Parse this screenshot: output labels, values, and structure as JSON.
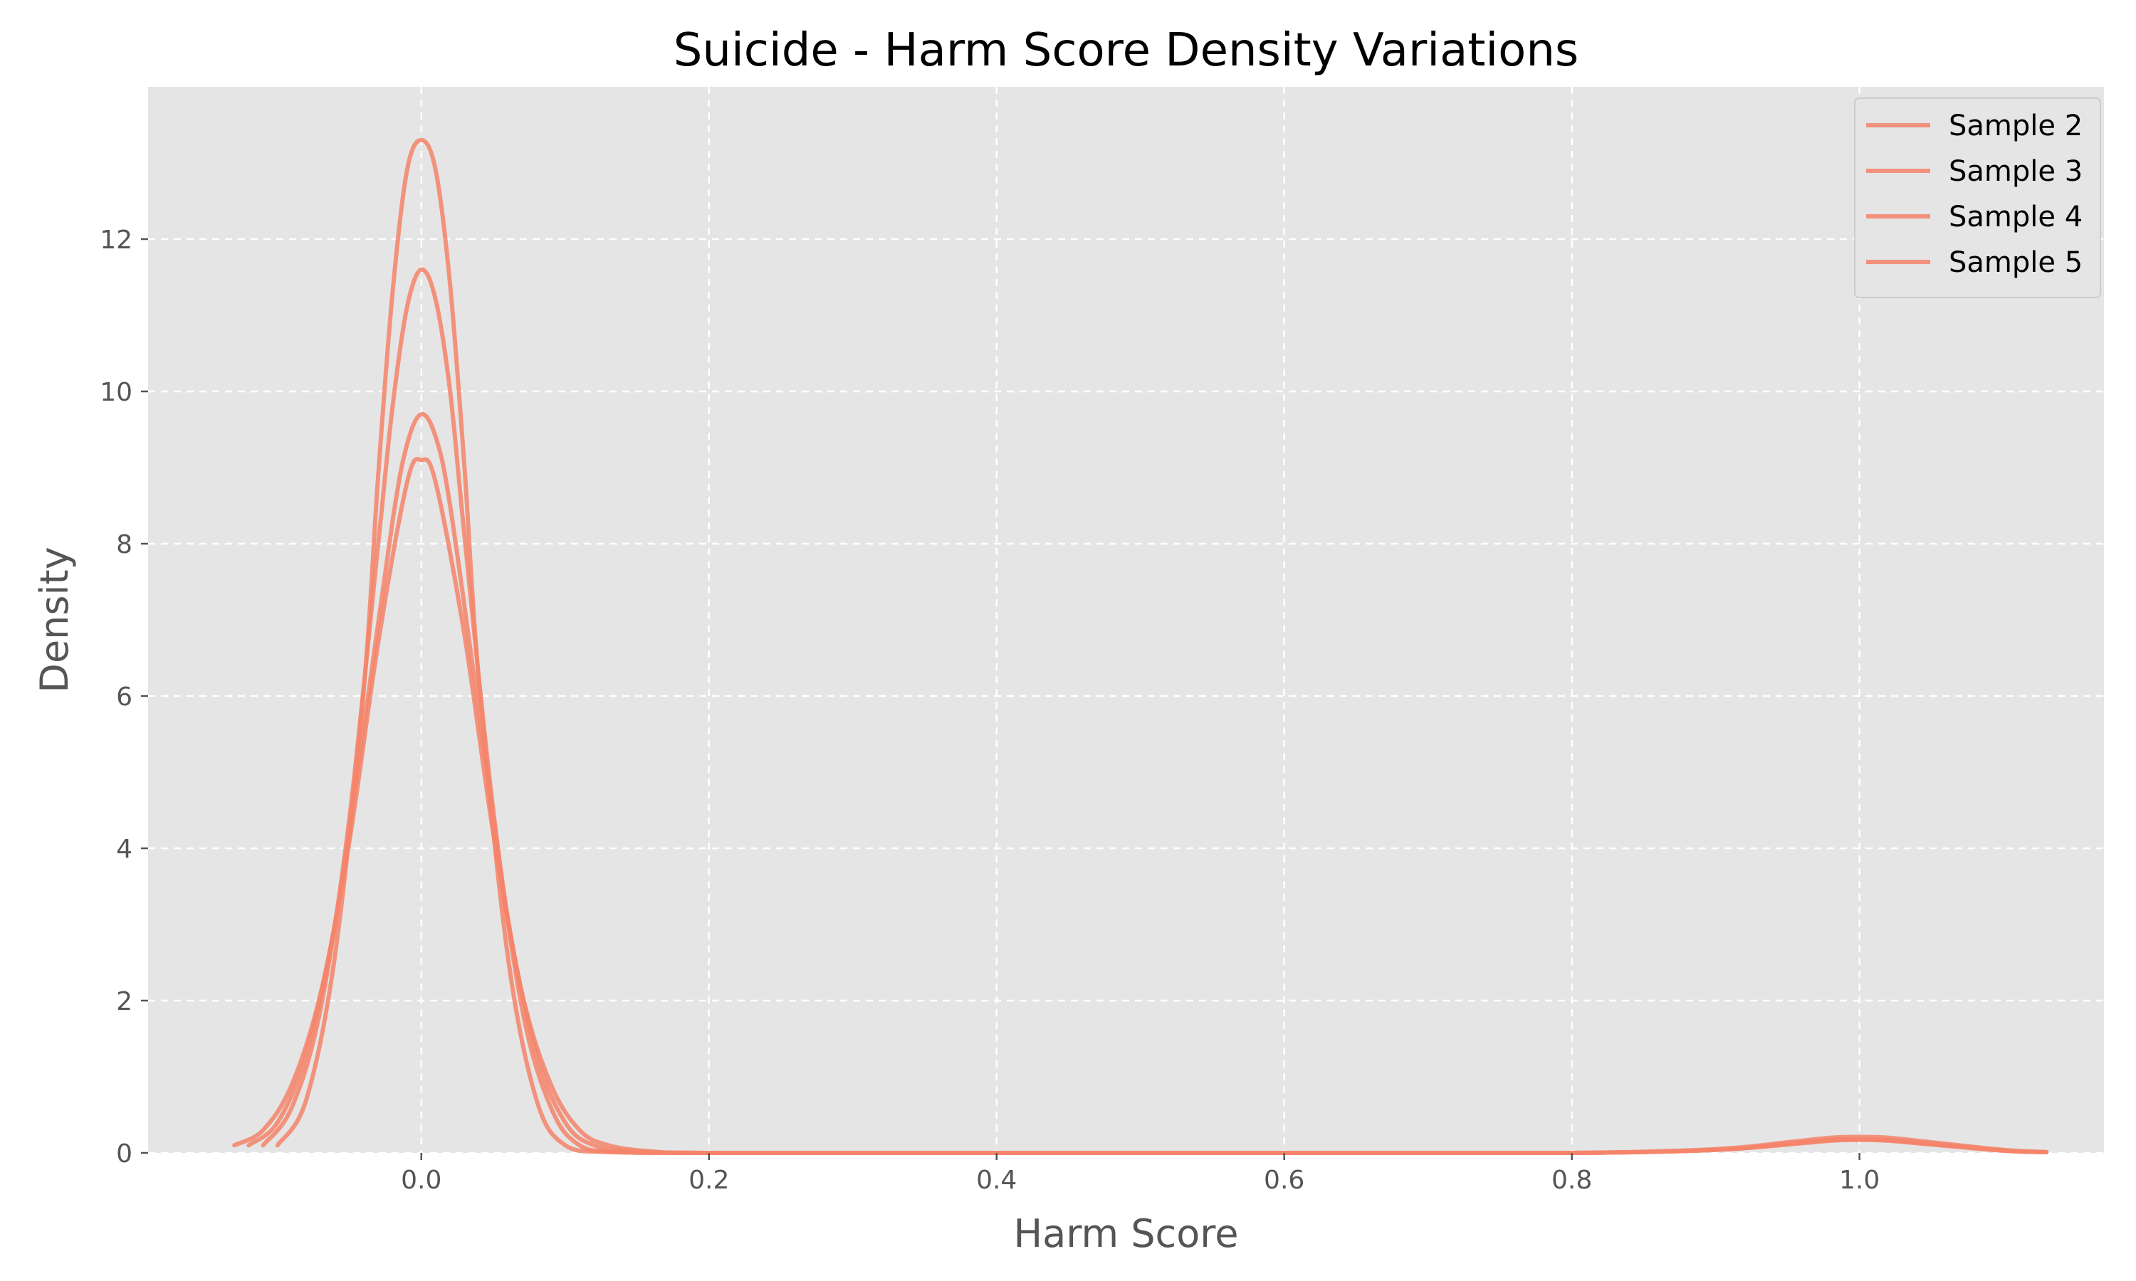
{
  "chart_data": {
    "type": "line",
    "title": "Suicide - Harm Score Density Variations",
    "xlabel": "Harm Score",
    "ylabel": "Density",
    "xlim": [
      -0.19,
      1.17
    ],
    "ylim": [
      0,
      14
    ],
    "xticks": [
      0.0,
      0.2,
      0.4,
      0.6,
      0.8,
      1.0
    ],
    "xtick_labels": [
      "0.0",
      "0.2",
      "0.4",
      "0.6",
      "0.8",
      "1.0"
    ],
    "yticks": [
      0,
      2,
      4,
      6,
      8,
      10,
      12
    ],
    "ytick_labels": [
      "0",
      "2",
      "4",
      "6",
      "8",
      "10",
      "12"
    ],
    "grid": true,
    "legend_position": "top-right",
    "background_color": "#e5e5e5",
    "line_color": "#f5846a",
    "series": [
      {
        "name": "Sample 2",
        "x": [
          -0.13,
          -0.11,
          -0.09,
          -0.07,
          -0.05,
          -0.03,
          -0.01,
          0.0,
          0.01,
          0.03,
          0.05,
          0.07,
          0.09,
          0.11,
          0.13,
          0.16,
          0.2,
          0.4,
          0.6,
          0.8,
          0.9,
          0.95,
          0.98,
          1.0,
          1.02,
          1.05,
          1.1,
          1.13
        ],
        "y": [
          0.1,
          0.3,
          0.9,
          2.1,
          4.1,
          6.7,
          8.8,
          9.1,
          8.8,
          6.8,
          4.2,
          2.1,
          0.9,
          0.3,
          0.1,
          0.02,
          0.0,
          0.0,
          0.0,
          0.0,
          0.04,
          0.12,
          0.17,
          0.18,
          0.17,
          0.12,
          0.03,
          0.01
        ]
      },
      {
        "name": "Sample 3",
        "x": [
          -0.12,
          -0.1,
          -0.08,
          -0.06,
          -0.04,
          -0.02,
          -0.01,
          0.0,
          0.01,
          0.02,
          0.04,
          0.06,
          0.08,
          0.1,
          0.12,
          0.15,
          0.2,
          0.4,
          0.6,
          0.8,
          0.9,
          0.95,
          0.98,
          1.0,
          1.02,
          1.05,
          1.1,
          1.13
        ],
        "y": [
          0.1,
          0.4,
          1.3,
          3.0,
          5.6,
          8.3,
          9.3,
          9.7,
          9.4,
          8.5,
          5.8,
          3.1,
          1.3,
          0.4,
          0.1,
          0.02,
          0.0,
          0.0,
          0.0,
          0.0,
          0.04,
          0.11,
          0.16,
          0.17,
          0.16,
          0.11,
          0.03,
          0.01
        ]
      },
      {
        "name": "Sample 4",
        "x": [
          -0.11,
          -0.09,
          -0.07,
          -0.05,
          -0.03,
          -0.02,
          -0.01,
          0.0,
          0.01,
          0.02,
          0.03,
          0.05,
          0.07,
          0.09,
          0.11,
          0.14,
          0.2,
          0.4,
          0.6,
          0.8,
          0.9,
          0.95,
          0.98,
          1.0,
          1.02,
          1.05,
          1.1,
          1.13
        ],
        "y": [
          0.1,
          0.6,
          1.9,
          4.4,
          8.0,
          9.8,
          11.1,
          11.6,
          11.2,
          10.0,
          8.1,
          4.5,
          1.9,
          0.6,
          0.1,
          0.01,
          0.0,
          0.0,
          0.0,
          0.0,
          0.05,
          0.14,
          0.2,
          0.21,
          0.2,
          0.14,
          0.04,
          0.01
        ]
      },
      {
        "name": "Sample 5",
        "x": [
          -0.1,
          -0.08,
          -0.06,
          -0.04,
          -0.03,
          -0.02,
          -0.01,
          0.0,
          0.01,
          0.02,
          0.03,
          0.04,
          0.06,
          0.08,
          0.1,
          0.13,
          0.2,
          0.4,
          0.6,
          0.8,
          0.9,
          0.95,
          0.98,
          1.0,
          1.02,
          1.05,
          1.1,
          1.13
        ],
        "y": [
          0.1,
          0.7,
          2.6,
          6.1,
          8.9,
          11.3,
          12.9,
          13.3,
          12.9,
          11.4,
          9.0,
          6.2,
          2.6,
          0.7,
          0.1,
          0.01,
          0.0,
          0.0,
          0.0,
          0.0,
          0.04,
          0.12,
          0.17,
          0.18,
          0.17,
          0.12,
          0.03,
          0.01
        ]
      }
    ]
  }
}
